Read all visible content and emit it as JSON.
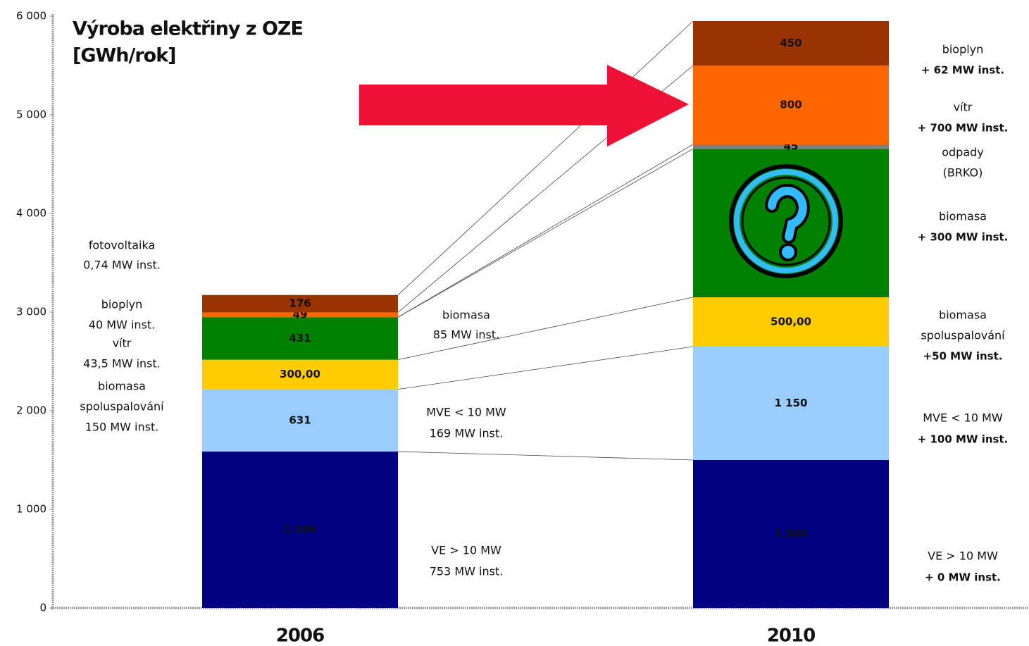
{
  "chart_data": {
    "type": "bar",
    "stacked": true,
    "title": "Výroba elektřiny z OZE",
    "subtitle": "[GWh/rok]",
    "categories": [
      "2006",
      "2010"
    ],
    "ylim": [
      0,
      6000
    ],
    "yticks": [
      0,
      {
        "value": 1000,
        "label": "1 000"
      },
      {
        "value": 2000,
        "label": "2 000"
      },
      {
        "value": 3000,
        "label": "3 000"
      },
      {
        "value": 4000,
        "label": "4 000"
      },
      {
        "value": 5000,
        "label": "5 000"
      },
      {
        "value": 6000,
        "label": "6 000"
      }
    ],
    "series": [
      {
        "color": "#000080",
        "values": [
          1586,
          1500
        ],
        "value_labels": [
          "1 586",
          "1 500"
        ]
      },
      {
        "color": "#99ccff",
        "values": [
          631,
          1150
        ],
        "value_labels": [
          "631",
          "1 150"
        ]
      },
      {
        "color": "#ffcc00",
        "values": [
          300,
          500
        ],
        "value_labels": [
          "300,00",
          "500,00"
        ]
      },
      {
        "color": "#008000",
        "values": [
          431,
          1505
        ],
        "value_labels": [
          "431",
          null
        ]
      },
      {
        "color": "#808080",
        "values": [
          null,
          45
        ],
        "value_labels": [
          null,
          "45"
        ]
      },
      {
        "color": "#ff6600",
        "values": [
          49,
          800
        ],
        "value_labels": [
          "49",
          "800"
        ]
      },
      {
        "color": "#993300",
        "values": [
          176,
          450
        ],
        "value_labels": [
          "176",
          "450"
        ]
      }
    ],
    "left_notes": [
      "fotovoltaika",
      "0,74 MW inst.",
      "bioplyn",
      "40 MW inst.",
      "vítr",
      "43,5 MW inst.",
      "biomasa",
      "spoluspalování",
      "150 MW inst."
    ],
    "mid_notes": [
      "biomasa",
      "85 MW inst.",
      "MVE < 10 MW",
      "169 MW inst.",
      "VE > 10 MW",
      "753 MW inst."
    ],
    "right_notes": [
      "bioplyn",
      "+ 62 MW inst.",
      "vítr",
      "+ 700 MW inst.",
      "odpady",
      "(BRKO)",
      "biomasa",
      "+ 300 MW inst.",
      "biomasa",
      "spoluspalování",
      "+50 MW inst.",
      "MVE < 10 MW",
      "+ 100 MW inst.",
      "VE > 10 MW",
      "+ 0 MW inst."
    ]
  }
}
